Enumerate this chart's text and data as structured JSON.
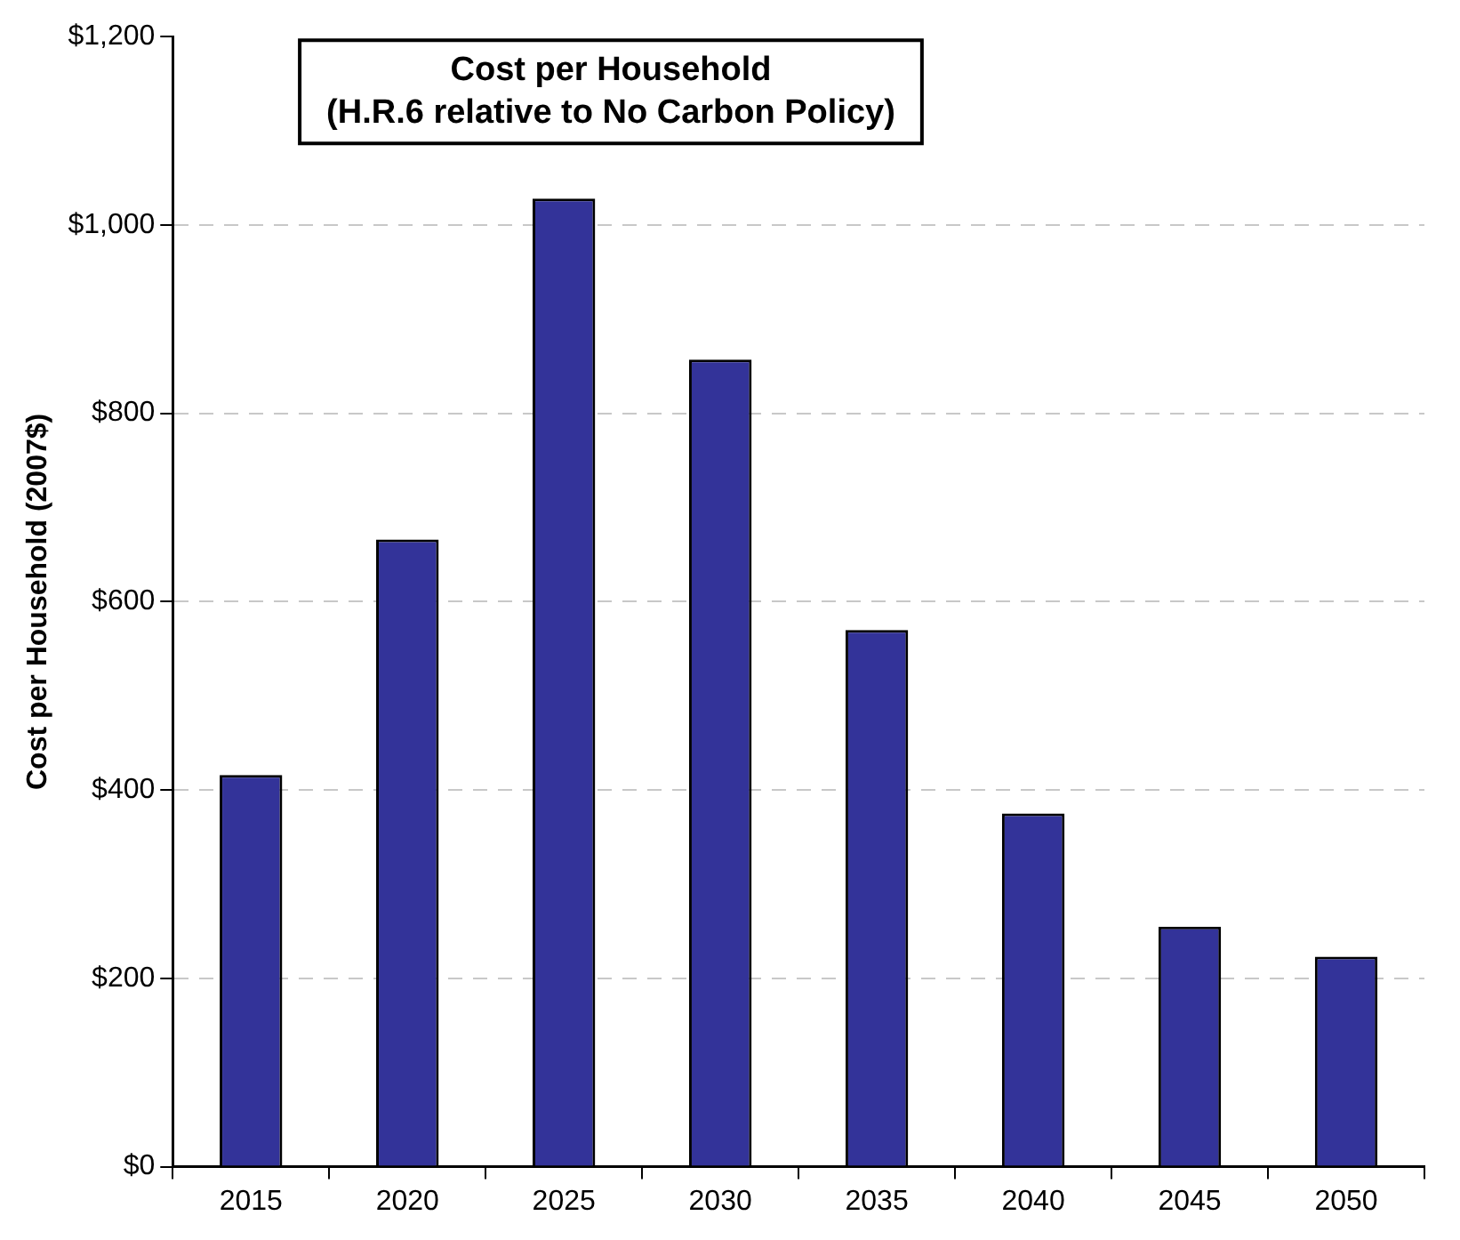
{
  "chart_data": {
    "type": "bar",
    "title": "Cost per Household\n(H.R.6 relative to No Carbon Policy)",
    "ylabel": "Cost per Household (2007$)",
    "categories": [
      "2015",
      "2020",
      "2025",
      "2030",
      "2035",
      "2040",
      "2045",
      "2050"
    ],
    "values": [
      416,
      666,
      1028,
      857,
      570,
      375,
      255,
      223
    ],
    "color": "#333399",
    "ylim": [
      0,
      1200
    ],
    "yticks": [
      {
        "value": 0,
        "label": "$0"
      },
      {
        "value": 200,
        "label": "$200"
      },
      {
        "value": 400,
        "label": "$400"
      },
      {
        "value": 600,
        "label": "$600"
      },
      {
        "value": 800,
        "label": "$800"
      },
      {
        "value": 1000,
        "label": "$1,000"
      },
      {
        "value": 1200,
        "label": "$1,200"
      }
    ],
    "grid": "y",
    "legend": false
  }
}
